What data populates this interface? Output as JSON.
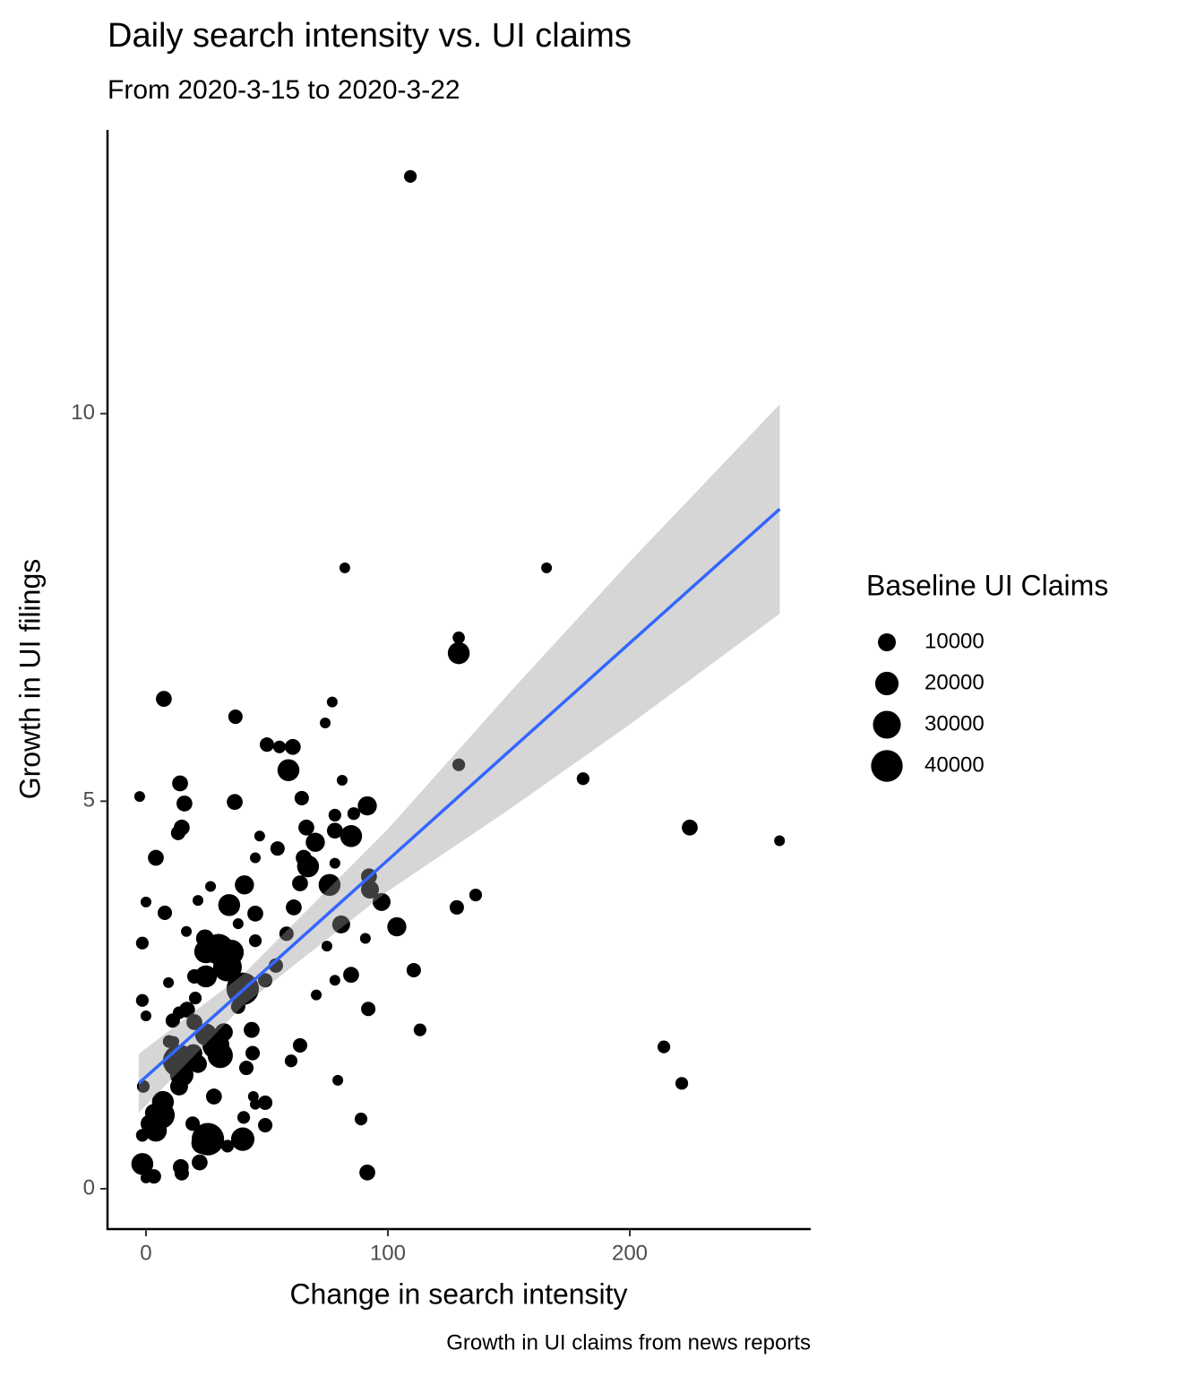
{
  "chart_data": {
    "type": "scatter",
    "title": "Daily search intensity vs. UI claims",
    "subtitle": "From 2020-3-15 to 2020-3-22",
    "x_label": "Change in search intensity",
    "y_label": "Growth in UI filings",
    "caption": "Growth in UI claims from news reports",
    "xlim": [
      -15.9,
      274.8
    ],
    "ylim": [
      -0.52,
      13.66
    ],
    "xticks": [
      0,
      100,
      200
    ],
    "yticks": [
      0,
      5,
      10
    ],
    "color": "#000000",
    "x": [
      109.3,
      82.2,
      165.6,
      129.3,
      129.3,
      7.4,
      77.0,
      37.0,
      74.1,
      50.0,
      55.2,
      60.7,
      129.3,
      58.9,
      81.1,
      180.7,
      14.1,
      -2.6,
      64.4,
      36.7,
      15.9,
      91.5,
      85.9,
      78.1,
      14.8,
      224.8,
      66.3,
      13.3,
      78.1,
      84.8,
      47.0,
      261.9,
      70.0,
      54.4,
      4.1,
      45.2,
      65.2,
      67.0,
      78.1,
      92.2,
      63.7,
      75.9,
      40.7,
      26.7,
      92.6,
      136.3,
      21.5,
      0,
      97.4,
      34.4,
      128.5,
      61.1,
      45.2,
      7.8,
      38.1,
      80.7,
      103.7,
      16.7,
      58.1,
      90.7,
      24.4,
      45.2,
      -1.5,
      74.8,
      30.0,
      24.8,
      35.2,
      33.7,
      53.7,
      110.7,
      24.8,
      84.8,
      20.0,
      78.1,
      49.3,
      9.3,
      40.0,
      70.4,
      -1.5,
      20.4,
      38.1,
      17.0,
      91.9,
      13.7,
      0,
      11.1,
      20.0,
      113.3,
      43.7,
      32.2,
      24.8,
      11.5,
      9.6,
      28.9,
      63.7,
      214.1,
      19.6,
      44.1,
      30.7,
      13.7,
      60.0,
      21.5,
      41.5,
      14.8,
      79.3,
      221.5,
      -1.1,
      13.7,
      28.1,
      44.4,
      49.3,
      7.0,
      45.2,
      3.3,
      6.3,
      40.4,
      88.9,
      19.3,
      49.3,
      1.5,
      4.1,
      -1.5,
      25.6,
      40.0,
      23.3,
      33.7,
      -1.5,
      22.2,
      14.4,
      91.5,
      3.3,
      0,
      14.8
    ],
    "y": [
      13.06,
      8.01,
      8.01,
      7.11,
      6.91,
      6.32,
      6.28,
      6.09,
      6.01,
      5.73,
      5.7,
      5.7,
      5.47,
      5.4,
      5.27,
      5.29,
      5.23,
      5.06,
      5.04,
      4.99,
      4.97,
      4.94,
      4.84,
      4.82,
      4.66,
      4.66,
      4.66,
      4.59,
      4.62,
      4.55,
      4.55,
      4.49,
      4.47,
      4.39,
      4.27,
      4.27,
      4.27,
      4.16,
      4.2,
      4.03,
      3.94,
      3.92,
      3.92,
      3.9,
      3.86,
      3.79,
      3.72,
      3.7,
      3.7,
      3.66,
      3.63,
      3.63,
      3.55,
      3.56,
      3.42,
      3.41,
      3.38,
      3.32,
      3.29,
      3.23,
      3.23,
      3.2,
      3.17,
      3.13,
      3.09,
      3.06,
      3.05,
      2.86,
      2.88,
      2.82,
      2.74,
      2.76,
      2.74,
      2.69,
      2.69,
      2.66,
      2.58,
      2.5,
      2.43,
      2.46,
      2.35,
      2.31,
      2.32,
      2.27,
      2.23,
      2.17,
      2.15,
      2.05,
      2.05,
      2.02,
      1.99,
      1.9,
      1.9,
      1.85,
      1.85,
      1.83,
      1.75,
      1.75,
      1.72,
      1.65,
      1.65,
      1.61,
      1.56,
      1.47,
      1.4,
      1.36,
      1.32,
      1.32,
      1.19,
      1.19,
      1.11,
      1.12,
      1.09,
      0.98,
      0.95,
      0.92,
      0.9,
      0.84,
      0.82,
      0.84,
      0.75,
      0.69,
      0.64,
      0.64,
      0.59,
      0.55,
      0.32,
      0.34,
      0.28,
      0.21,
      0.16,
      0.14,
      0.2
    ],
    "size": [
      3000,
      1000,
      1000,
      2500,
      17000,
      7000,
      1000,
      5000,
      1000,
      5000,
      3000,
      7000,
      3000,
      17000,
      1000,
      3000,
      7000,
      1000,
      5000,
      7000,
      7000,
      12000,
      3000,
      3000,
      7000,
      7000,
      7000,
      5000,
      7000,
      17000,
      1000,
      1000,
      12000,
      5000,
      7000,
      1000,
      7000,
      17000,
      1000,
      7000,
      7000,
      17000,
      12000,
      1000,
      10000,
      3000,
      1000,
      1000,
      10000,
      17000,
      5000,
      7000,
      7000,
      5000,
      1000,
      10000,
      12000,
      1000,
      5000,
      1000,
      10000,
      3000,
      3000,
      1000,
      37000,
      20000,
      24000,
      32000,
      5000,
      5000,
      17000,
      7000,
      5000,
      1000,
      5000,
      1000,
      42000,
      1000,
      3000,
      3000,
      5000,
      7000,
      5000,
      3000,
      1000,
      5000,
      7000,
      3000,
      7000,
      10000,
      17000,
      1000,
      3000,
      28000,
      5000,
      3000,
      10000,
      5000,
      24000,
      42000,
      3000,
      10000,
      5000,
      20000,
      1000,
      3000,
      3000,
      10000,
      7000,
      1000,
      5000,
      17000,
      1000,
      10000,
      28000,
      3000,
      3000,
      5000,
      5000,
      10000,
      17000,
      3000,
      42000,
      20000,
      17000,
      3000,
      17000,
      7000,
      7000,
      7000,
      5000,
      1000,
      5000
    ],
    "size_legend": {
      "title": "Baseline UI Claims",
      "values": [
        10000,
        20000,
        30000,
        40000
      ]
    },
    "fit": {
      "color": "#3366ff",
      "band_color": "#999999",
      "x": [
        -3,
        40,
        100,
        150,
        200,
        262
      ],
      "y": [
        1.36,
        2.56,
        4.24,
        5.64,
        7.04,
        8.77
      ],
      "ymin": [
        0.98,
        2.36,
        3.84,
        4.89,
        5.99,
        7.42
      ],
      "ymax": [
        1.74,
        2.76,
        4.64,
        6.39,
        8.09,
        10.12
      ]
    }
  }
}
